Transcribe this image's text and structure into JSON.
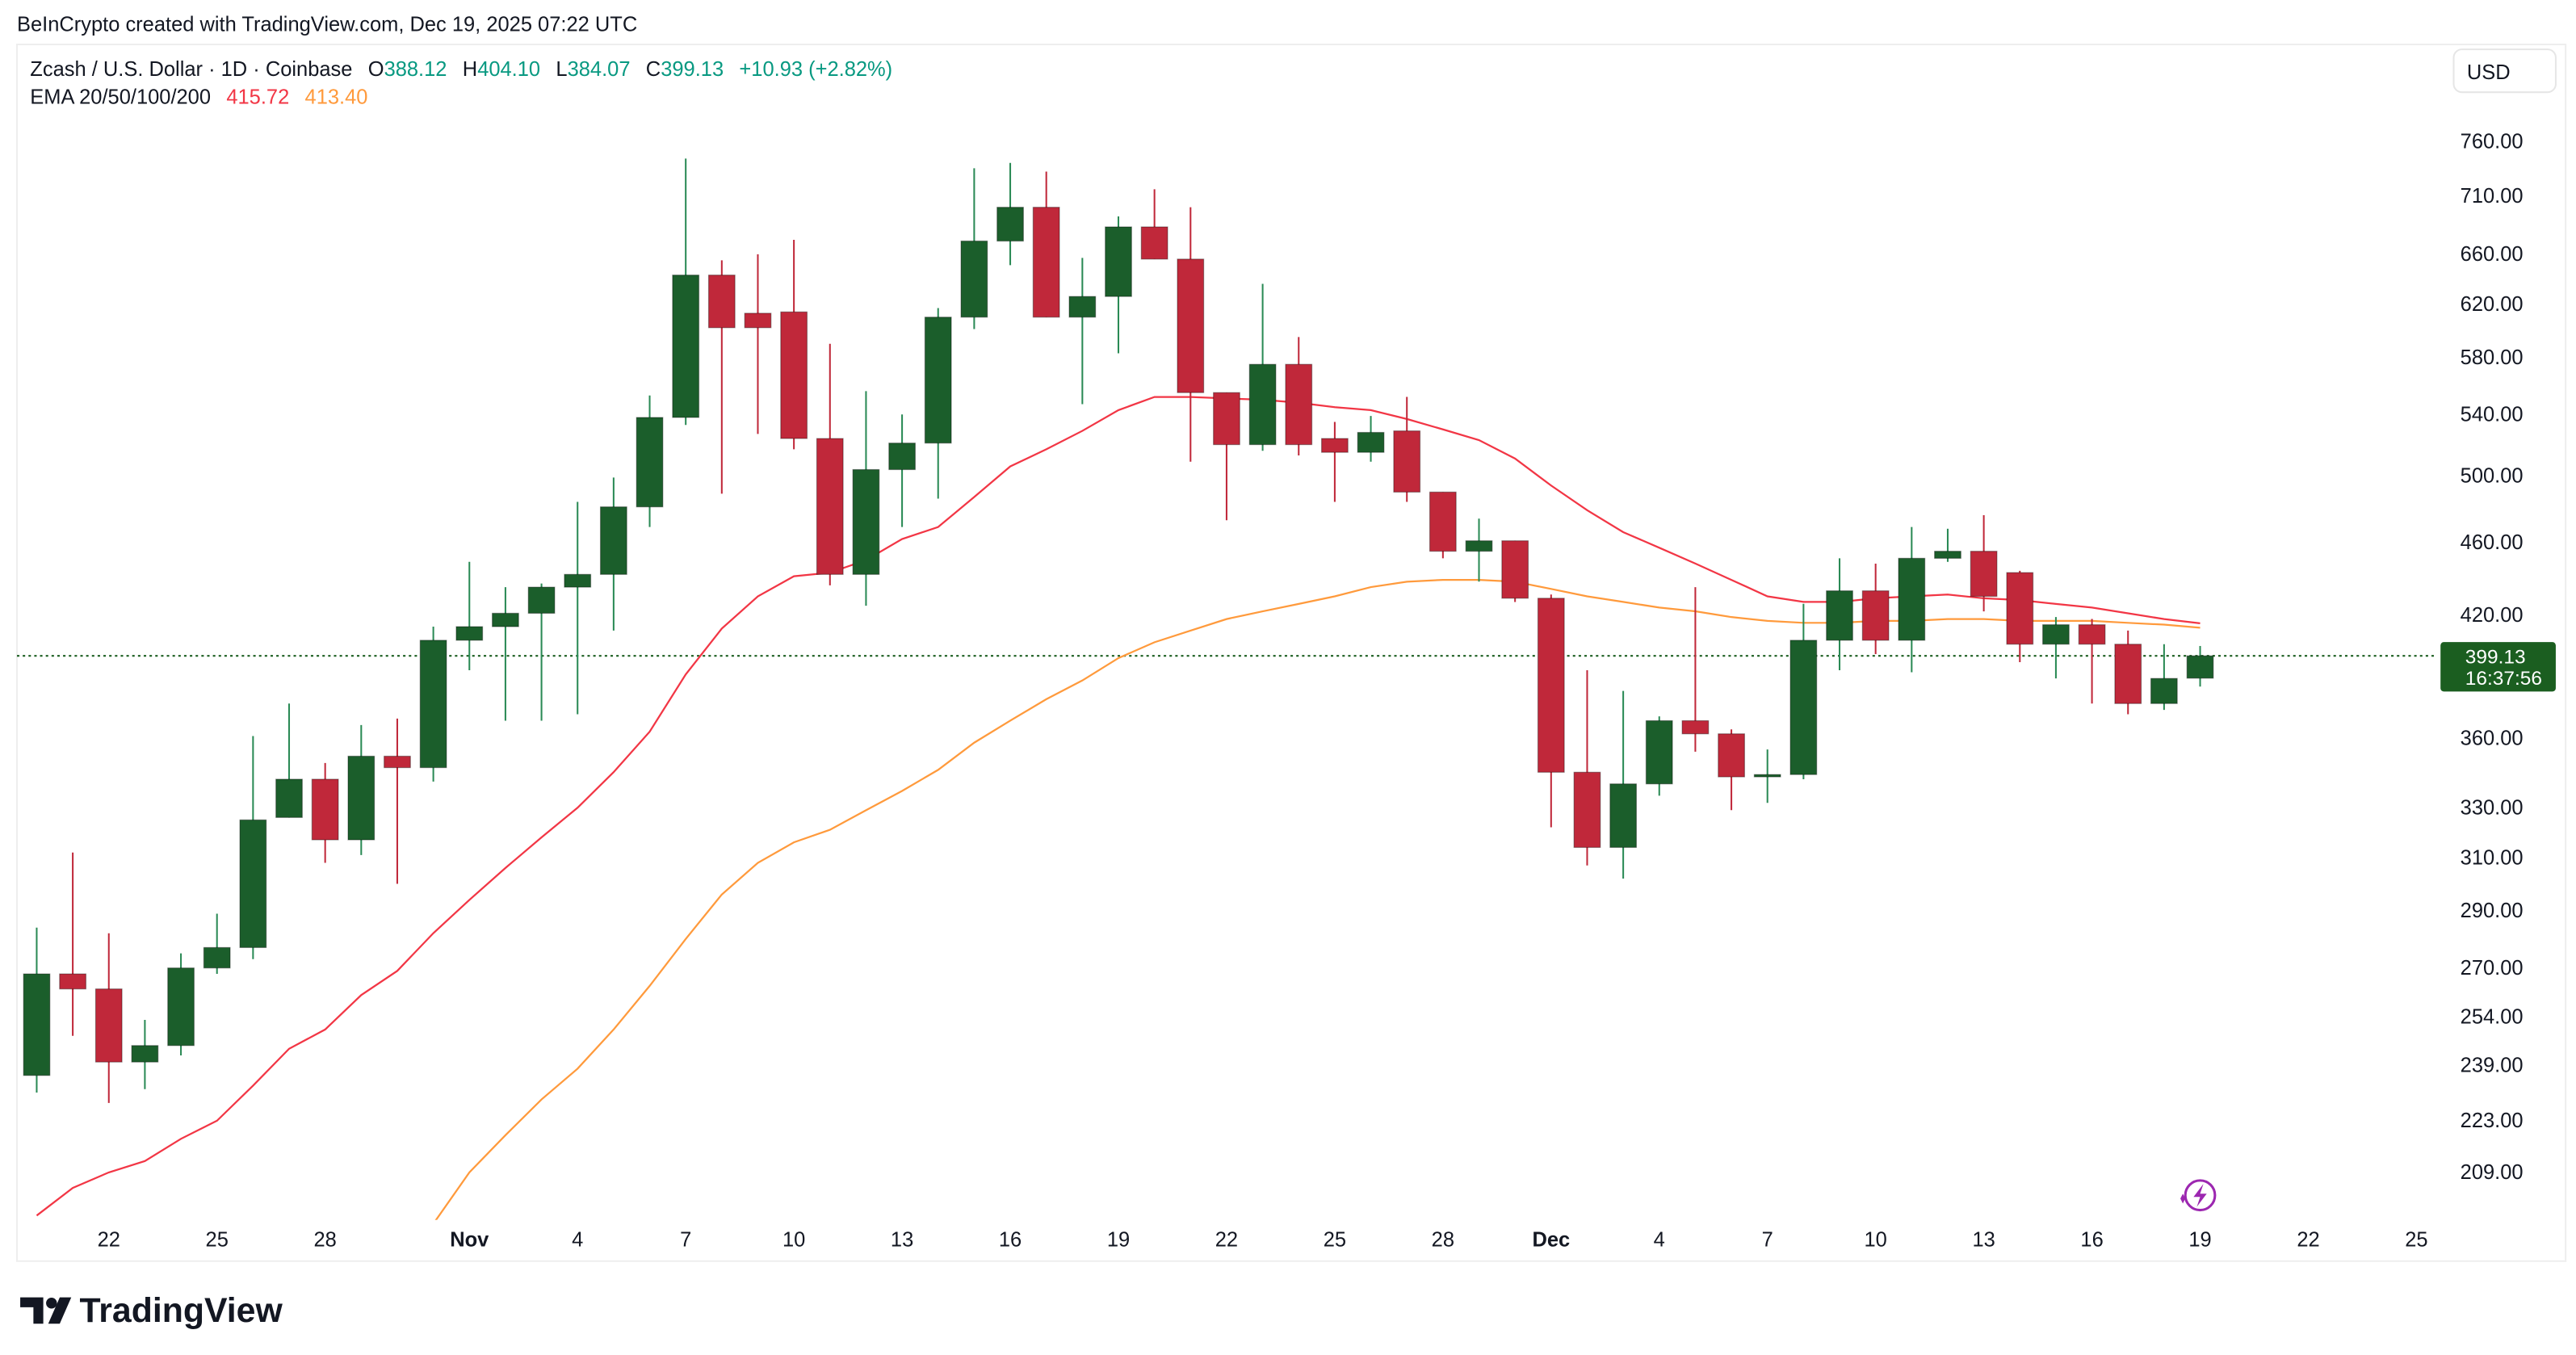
{
  "attribution": "BeInCrypto created with TradingView.com, Dec 19, 2025 07:22 UTC",
  "legend": {
    "symbol": "Zcash / U.S. Dollar · 1D · Coinbase",
    "o_label": "O",
    "o": "388.12",
    "h_label": "H",
    "h": "404.10",
    "l_label": "L",
    "l": "384.07",
    "c_label": "C",
    "c": "399.13",
    "change": "+10.93 (+2.82%)",
    "ema_label": "EMA 20/50/100/200",
    "ema20": "415.72",
    "ema50": "413.40"
  },
  "currency_button": "USD",
  "last_price": {
    "price": "399.13",
    "countdown": "16:37:56"
  },
  "logo": "TradingView",
  "colors": {
    "up": "#1b5e2b",
    "up_wick": "#2a8a55",
    "down": "#c0283a",
    "ema20": "#f23645",
    "ema50": "#ff9a3c",
    "last_price_bg": "#1b5e20",
    "last_price_line": "#1b5e20",
    "lightning": "#9c27b0"
  },
  "icons": {
    "lightning": "lightning-bolt-icon"
  },
  "chart_data": {
    "type": "candlestick",
    "scale": "log",
    "ylim": [
      197,
      770
    ],
    "grid": false,
    "y_ticks": [
      "760.00",
      "710.00",
      "660.00",
      "620.00",
      "580.00",
      "540.00",
      "500.00",
      "460.00",
      "420.00",
      "360.00",
      "330.00",
      "310.00",
      "290.00",
      "270.00",
      "254.00",
      "239.00",
      "223.00",
      "209.00"
    ],
    "x_ticks": [
      {
        "date": "2025-10-22",
        "label": "22"
      },
      {
        "date": "2025-10-25",
        "label": "25"
      },
      {
        "date": "2025-10-28",
        "label": "28"
      },
      {
        "date": "2025-11-01",
        "label": "Nov",
        "bold": true
      },
      {
        "date": "2025-11-04",
        "label": "4"
      },
      {
        "date": "2025-11-07",
        "label": "7"
      },
      {
        "date": "2025-11-10",
        "label": "10"
      },
      {
        "date": "2025-11-13",
        "label": "13"
      },
      {
        "date": "2025-11-16",
        "label": "16"
      },
      {
        "date": "2025-11-19",
        "label": "19"
      },
      {
        "date": "2025-11-22",
        "label": "22"
      },
      {
        "date": "2025-11-25",
        "label": "25"
      },
      {
        "date": "2025-11-28",
        "label": "28"
      },
      {
        "date": "2025-12-01",
        "label": "Dec",
        "bold": true
      },
      {
        "date": "2025-12-04",
        "label": "4"
      },
      {
        "date": "2025-12-07",
        "label": "7"
      },
      {
        "date": "2025-12-10",
        "label": "10"
      },
      {
        "date": "2025-12-13",
        "label": "13"
      },
      {
        "date": "2025-12-16",
        "label": "16"
      },
      {
        "date": "2025-12-19",
        "label": "19"
      },
      {
        "date": "2025-12-22",
        "label": "22"
      },
      {
        "date": "2025-12-25",
        "label": "25"
      }
    ],
    "candles_columns": [
      "date",
      "open",
      "high",
      "low",
      "close"
    ],
    "candles": [
      [
        "2025-10-20",
        236,
        284,
        231,
        268
      ],
      [
        "2025-10-21",
        268,
        312,
        248,
        263
      ],
      [
        "2025-10-22",
        263,
        282,
        228,
        240
      ],
      [
        "2025-10-23",
        240,
        253,
        232,
        245
      ],
      [
        "2025-10-24",
        245,
        275,
        242,
        270
      ],
      [
        "2025-10-25",
        270,
        289,
        268,
        277
      ],
      [
        "2025-10-26",
        277,
        361,
        273,
        325
      ],
      [
        "2025-10-27",
        326,
        376,
        326,
        342
      ],
      [
        "2025-10-28",
        342,
        349,
        308,
        317
      ],
      [
        "2025-10-29",
        317,
        366,
        311,
        352
      ],
      [
        "2025-10-30",
        352,
        369,
        300,
        347
      ],
      [
        "2025-10-31",
        347,
        414,
        341,
        407
      ],
      [
        "2025-11-01",
        407,
        449,
        392,
        414
      ],
      [
        "2025-11-02",
        414,
        435,
        368,
        421
      ],
      [
        "2025-11-03",
        421,
        437,
        368,
        435
      ],
      [
        "2025-11-04",
        435,
        484,
        371,
        442
      ],
      [
        "2025-11-05",
        442,
        499,
        412,
        481
      ],
      [
        "2025-11-06",
        481,
        553,
        469,
        538
      ],
      [
        "2025-11-07",
        538,
        744,
        533,
        643
      ],
      [
        "2025-11-08",
        643,
        655,
        489,
        602
      ],
      [
        "2025-11-09",
        613,
        660,
        527,
        602
      ],
      [
        "2025-11-10",
        614,
        672,
        517,
        524
      ],
      [
        "2025-11-11",
        524,
        590,
        436,
        442
      ],
      [
        "2025-11-12",
        442,
        556,
        425,
        504
      ],
      [
        "2025-11-13",
        504,
        540,
        469,
        521
      ],
      [
        "2025-11-14",
        521,
        617,
        486,
        610
      ],
      [
        "2025-11-15",
        610,
        735,
        601,
        671
      ],
      [
        "2025-11-16",
        671,
        740,
        651,
        700
      ],
      [
        "2025-11-17",
        700,
        732,
        610,
        610
      ],
      [
        "2025-11-18",
        610,
        657,
        547,
        626
      ],
      [
        "2025-11-19",
        626,
        692,
        583,
        683
      ],
      [
        "2025-11-20",
        683,
        716,
        656,
        656
      ],
      [
        "2025-11-21",
        656,
        700,
        509,
        555
      ],
      [
        "2025-11-22",
        555,
        555,
        473,
        520
      ],
      [
        "2025-11-23",
        520,
        636,
        516,
        575
      ],
      [
        "2025-11-24",
        575,
        595,
        513,
        520
      ],
      [
        "2025-11-25",
        524,
        535,
        484,
        515
      ],
      [
        "2025-11-26",
        515,
        539,
        509,
        528
      ],
      [
        "2025-11-27",
        529,
        552,
        484,
        490
      ],
      [
        "2025-11-28",
        490,
        490,
        451,
        455
      ],
      [
        "2025-11-29",
        455,
        474,
        438,
        461
      ],
      [
        "2025-11-30",
        461,
        461,
        427,
        429
      ],
      [
        "2025-12-01",
        429,
        431,
        322,
        345
      ],
      [
        "2025-12-02",
        345,
        392,
        307,
        314
      ],
      [
        "2025-12-03",
        314,
        382,
        302,
        340
      ],
      [
        "2025-12-04",
        340,
        370,
        335,
        368
      ],
      [
        "2025-12-05",
        368,
        435,
        354,
        362
      ],
      [
        "2025-12-06",
        362,
        364,
        329,
        343
      ],
      [
        "2025-12-07",
        343,
        355,
        332,
        344
      ],
      [
        "2025-12-08",
        344,
        426,
        342,
        407
      ],
      [
        "2025-12-09",
        407,
        451,
        392,
        433
      ],
      [
        "2025-12-10",
        433,
        448,
        400,
        407
      ],
      [
        "2025-12-11",
        407,
        469,
        391,
        451
      ],
      [
        "2025-12-12",
        451,
        468,
        449,
        455
      ],
      [
        "2025-12-13",
        455,
        476,
        422,
        430
      ],
      [
        "2025-12-14",
        443,
        444,
        396,
        405
      ],
      [
        "2025-12-15",
        405,
        419,
        388,
        415
      ],
      [
        "2025-12-16",
        415,
        418,
        376,
        405
      ],
      [
        "2025-12-17",
        405,
        412,
        371,
        376
      ],
      [
        "2025-12-18",
        376,
        405,
        373,
        388
      ],
      [
        "2025-12-19",
        388.12,
        404.1,
        384.07,
        399.13
      ]
    ],
    "series": [
      {
        "name": "EMA 20",
        "start_date": "2025-10-20",
        "values": [
          198,
          205,
          209,
          212,
          218,
          223,
          233,
          244,
          250,
          261,
          269,
          282,
          294,
          306,
          318,
          330,
          345,
          363,
          390,
          413,
          430,
          441,
          443,
          450,
          462,
          469,
          487,
          506,
          517,
          529,
          543,
          552,
          552,
          551,
          550,
          548,
          545,
          543,
          537,
          530,
          523,
          511,
          494,
          479,
          466,
          457,
          448,
          439,
          430,
          427,
          427,
          429,
          430,
          431,
          429,
          428,
          426,
          424,
          421,
          418,
          415.72
        ]
      },
      {
        "name": "EMA 50",
        "start_date": "2025-10-31",
        "values": [
          196,
          209,
          219,
          229,
          238,
          250,
          264,
          280,
          296,
          308,
          316,
          321,
          329,
          337,
          346,
          358,
          368,
          378,
          387,
          398,
          406,
          412,
          418,
          422,
          426,
          430,
          435,
          438,
          439,
          439,
          438,
          434,
          430,
          427,
          424,
          422,
          419,
          417,
          416,
          416,
          417,
          417,
          418,
          418,
          417,
          417,
          417,
          416,
          415,
          413.4
        ]
      }
    ]
  }
}
